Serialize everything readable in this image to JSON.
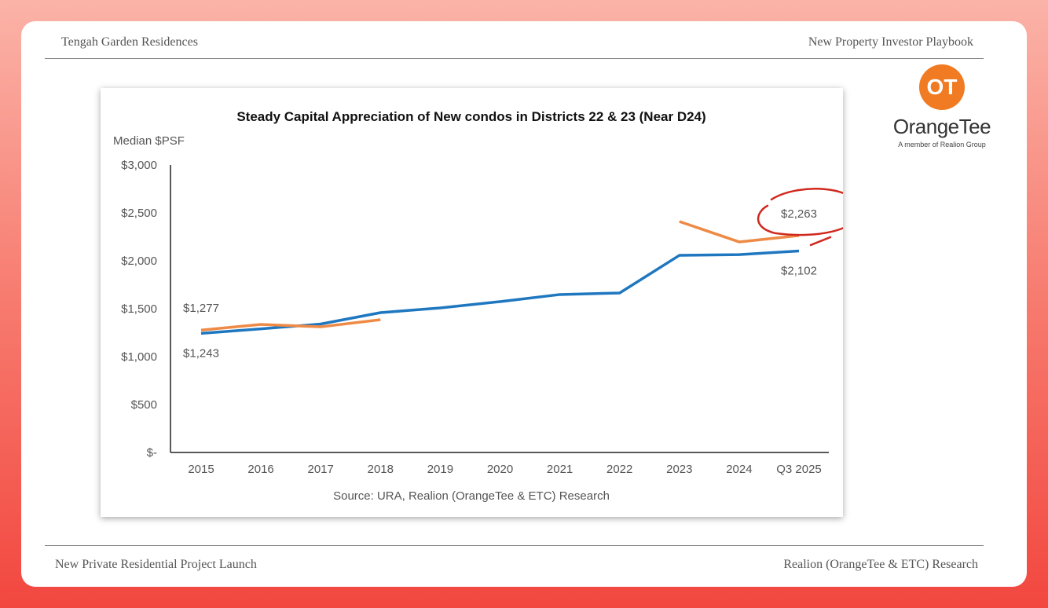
{
  "header": {
    "left": "Tengah Garden Residences",
    "right": "New Property Investor Playbook"
  },
  "footer": {
    "left": "New Private Residential Project Launch",
    "right": "Realion (OrangeTee & ETC) Research"
  },
  "logo": {
    "mark": "OT",
    "name": "OrangeTee",
    "tagline": "A member of Realion Group",
    "color": "#f07b22"
  },
  "chart_data": {
    "type": "line",
    "title": "Steady Capital Appreciation of New condos in Districts 22 & 23 (Near D24)",
    "ylabel": "Median $PSF",
    "xlabel": "",
    "source": "Source: URA, Realion (OrangeTee & ETC) Research",
    "categories": [
      "2015",
      "2016",
      "2017",
      "2018",
      "2019",
      "2020",
      "2021",
      "2022",
      "2023",
      "2024",
      "Q3 2025"
    ],
    "ylim": [
      0,
      3000
    ],
    "yticks": [
      {
        "v": 3000,
        "label": "$3,000"
      },
      {
        "v": 2500,
        "label": "$2,500"
      },
      {
        "v": 2000,
        "label": "$2,000"
      },
      {
        "v": 1500,
        "label": "$1,500"
      },
      {
        "v": 1000,
        "label": "$1,000"
      },
      {
        "v": 500,
        "label": "$500"
      },
      {
        "v": 0,
        "label": "$-"
      }
    ],
    "grid": false,
    "series": [
      {
        "color": "#1f77c0",
        "values": [
          1243,
          1290,
          1340,
          1459,
          1508,
          1574,
          1648,
          1664,
          2057,
          2065,
          2102
        ]
      },
      {
        "color": "#ee8a45",
        "values": [
          1277,
          1336,
          1311,
          1385,
          null,
          null,
          null,
          null,
          2410,
          2197,
          2263
        ]
      }
    ],
    "data_labels": [
      {
        "series": 1,
        "index": 0,
        "label": "$1,277",
        "pos": "above"
      },
      {
        "series": 0,
        "index": 0,
        "label": "$1,243",
        "pos": "below"
      },
      {
        "series": 1,
        "index": 10,
        "label": "$2,263",
        "pos": "above"
      },
      {
        "series": 0,
        "index": 10,
        "label": "$2,102",
        "pos": "below"
      }
    ],
    "annotation": {
      "type": "hand-drawn circle",
      "around": "$2,263",
      "color": "#d0281e"
    }
  }
}
